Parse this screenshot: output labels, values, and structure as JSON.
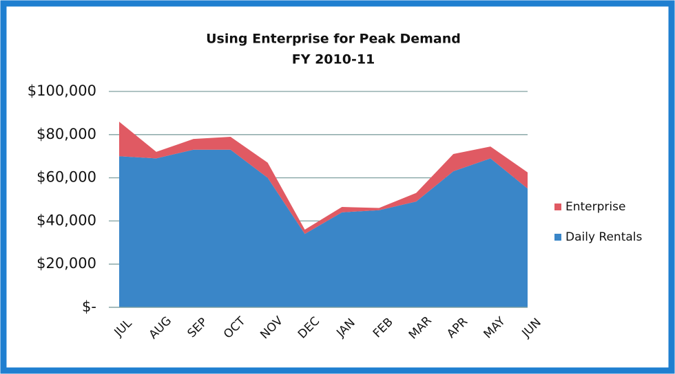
{
  "chart_data": {
    "type": "stacked_area",
    "title": "Using Enterprise for Peak Demand",
    "subtitle": "FY 2010-11",
    "categories": [
      "JUL",
      "AUG",
      "SEP",
      "OCT",
      "NOV",
      "DEC",
      "JAN",
      "FEB",
      "MAR",
      "APR",
      "MAY",
      "JUN"
    ],
    "series": [
      {
        "name": "Daily Rentals",
        "color": "#3a86c8",
        "values": [
          70000,
          69000,
          73000,
          73000,
          60000,
          34000,
          44000,
          45000,
          49000,
          63000,
          69000,
          55000
        ]
      },
      {
        "name": "Enterprise",
        "color": "#e05a63",
        "values": [
          16000,
          3000,
          5000,
          6000,
          7000,
          2000,
          2500,
          1000,
          4000,
          8000,
          5500,
          7500
        ]
      }
    ],
    "ylim": [
      0,
      100000
    ],
    "yticks": [
      {
        "value": 0,
        "label": "$-"
      },
      {
        "value": 20000,
        "label": "$20,000"
      },
      {
        "value": 40000,
        "label": "$40,000"
      },
      {
        "value": 60000,
        "label": "$60,000"
      },
      {
        "value": 80000,
        "label": "$80,000"
      },
      {
        "value": 100000,
        "label": "$100,000"
      }
    ],
    "grid": true,
    "legend": "right"
  }
}
